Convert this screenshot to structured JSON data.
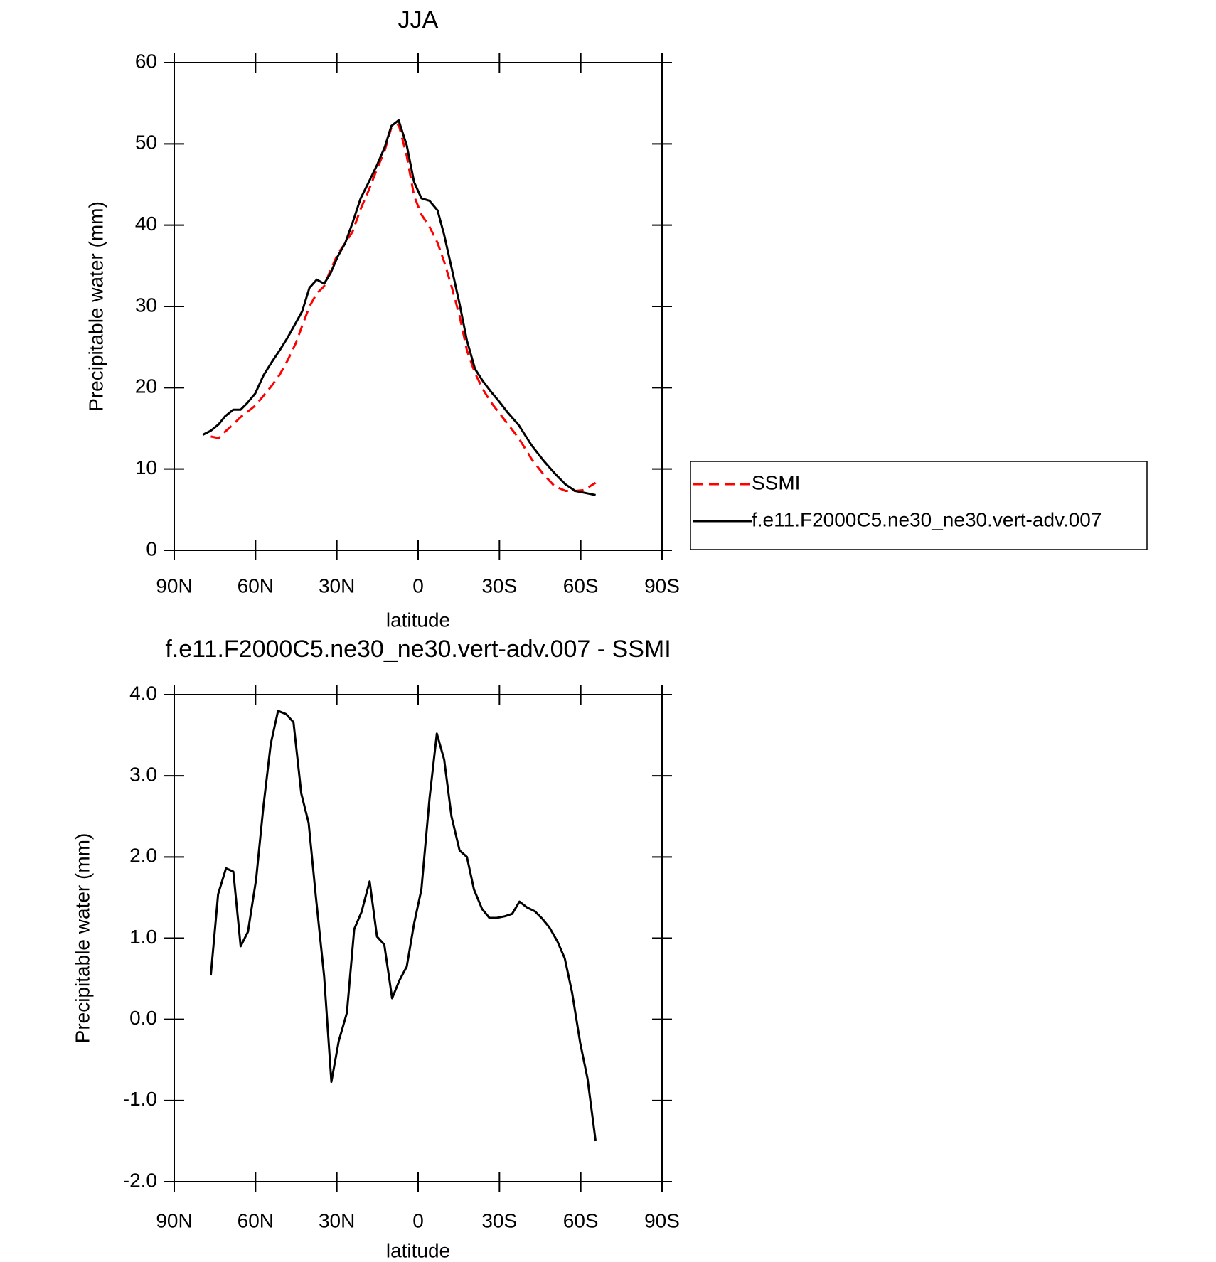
{
  "chart_data": [
    {
      "type": "line",
      "title": "JJA",
      "xlabel": "latitude",
      "ylabel": "Precipitable water (mm)",
      "x": [
        79.5,
        76.5,
        73.6,
        71.2,
        68.2,
        65.5,
        63.1,
        60.1,
        57.1,
        54.1,
        51.1,
        48.1,
        45.1,
        42.8,
        40.1,
        37.4,
        34.7,
        32.3,
        29.6,
        26.9,
        24.2,
        21.2,
        18.2,
        15.3,
        12.3,
        9.9,
        7.2,
        4.2,
        1.5,
        -1.2,
        -4.2,
        -7.2,
        -9.6,
        -12.3,
        -15.3,
        -18.0,
        -21.0,
        -23.9,
        -26.9,
        -29.9,
        -32.9,
        -37.1,
        -41.9,
        -46.1,
        -50.3,
        -54.4,
        -58.0,
        -61.0,
        -65.5
      ],
      "series": [
        {
          "name": "SSMI",
          "color": "#ff0000",
          "dashed": true,
          "values": [
            null,
            14.0,
            13.8,
            14.6,
            15.5,
            16.4,
            17.0,
            17.8,
            19.0,
            20.2,
            21.6,
            23.4,
            25.5,
            27.6,
            30.0,
            31.6,
            32.5,
            34.5,
            36.5,
            37.8,
            39.2,
            42.0,
            44.3,
            46.8,
            49.2,
            52.0,
            52.4,
            48.5,
            43.6,
            41.3,
            39.8,
            37.8,
            35.5,
            32.5,
            28.8,
            24.6,
            21.8,
            19.8,
            18.2,
            16.9,
            15.6,
            13.8,
            11.2,
            9.4,
            7.9,
            7.3,
            7.3,
            7.4,
            8.3
          ]
        },
        {
          "name": "f.e11.F2000C5.ne30_ne30.vert-adv.007",
          "color": "#000000",
          "dashed": false,
          "values": [
            14.2,
            14.7,
            15.5,
            16.5,
            17.3,
            17.3,
            18.1,
            19.3,
            21.5,
            23.1,
            24.6,
            26.2,
            28.0,
            29.4,
            32.3,
            33.3,
            32.8,
            34.1,
            36.2,
            37.8,
            40.3,
            43.3,
            45.3,
            47.3,
            49.6,
            52.2,
            52.9,
            49.8,
            45.3,
            43.3,
            43.0,
            41.8,
            38.8,
            34.8,
            30.3,
            25.8,
            22.3,
            20.8,
            19.5,
            18.3,
            17.0,
            15.4,
            12.9,
            11.1,
            9.5,
            8.1,
            7.3,
            7.1,
            6.8
          ]
        }
      ],
      "xlim": [
        90,
        -90
      ],
      "xticks": [
        {
          "value": 90,
          "label": "90N"
        },
        {
          "value": 60,
          "label": "60N"
        },
        {
          "value": 30,
          "label": "30N"
        },
        0,
        {
          "value": -30,
          "label": "30S"
        },
        {
          "value": -60,
          "label": "60S"
        },
        {
          "value": -90,
          "label": "90S"
        }
      ],
      "ylim": [
        0,
        60
      ],
      "yticks": [
        0,
        10,
        20,
        30,
        40,
        50,
        60
      ],
      "legend": "right"
    },
    {
      "type": "line",
      "title": "f.e11.F2000C5.ne30_ne30.vert-adv.007 - SSMI",
      "xlabel": "latitude",
      "ylabel": "Precipitable water (mm)",
      "x": [
        76.5,
        73.8,
        70.9,
        68.2,
        65.5,
        62.8,
        59.8,
        57.1,
        54.4,
        51.7,
        48.7,
        46.0,
        43.1,
        40.4,
        37.7,
        34.7,
        32.0,
        29.3,
        26.3,
        23.6,
        20.9,
        17.9,
        15.2,
        12.5,
        9.6,
        6.9,
        4.2,
        1.5,
        -1.2,
        -4.2,
        -6.9,
        -9.6,
        -12.3,
        -15.3,
        -18.0,
        -20.6,
        -23.6,
        -26.3,
        -29.0,
        -32.0,
        -34.7,
        -37.4,
        -40.1,
        -43.1,
        -45.8,
        -48.5,
        -51.4,
        -54.1,
        -56.8,
        -59.8,
        -62.5,
        -65.5
      ],
      "color": "#000000",
      "values": [
        0.54,
        1.54,
        1.86,
        1.82,
        0.9,
        1.08,
        1.72,
        2.62,
        3.39,
        3.8,
        3.76,
        3.66,
        2.78,
        2.42,
        1.5,
        0.53,
        -0.77,
        -0.27,
        0.08,
        1.11,
        1.32,
        1.7,
        1.02,
        0.92,
        0.26,
        0.48,
        0.65,
        1.18,
        1.6,
        2.72,
        3.52,
        3.2,
        2.5,
        2.08,
        2.0,
        1.6,
        1.36,
        1.25,
        1.25,
        1.27,
        1.3,
        1.45,
        1.38,
        1.33,
        1.24,
        1.13,
        0.96,
        0.75,
        0.33,
        -0.29,
        -0.73,
        -1.5
      ],
      "xlim": [
        90,
        -90
      ],
      "xticks": [
        {
          "value": 90,
          "label": "90N"
        },
        {
          "value": 60,
          "label": "60N"
        },
        {
          "value": 30,
          "label": "30N"
        },
        0,
        {
          "value": -30,
          "label": "30S"
        },
        {
          "value": -60,
          "label": "60S"
        },
        {
          "value": -90,
          "label": "90S"
        }
      ],
      "ylim": [
        -2,
        4
      ],
      "yticks": [
        {
          "value": -2,
          "label": "-2.0"
        },
        {
          "value": -1,
          "label": "-1.0"
        },
        {
          "value": 0,
          "label": "0.0"
        },
        {
          "value": 1,
          "label": "1.0"
        },
        {
          "value": 2,
          "label": "2.0"
        },
        {
          "value": 3,
          "label": "3.0"
        },
        {
          "value": 4,
          "label": "4.0"
        }
      ]
    }
  ]
}
